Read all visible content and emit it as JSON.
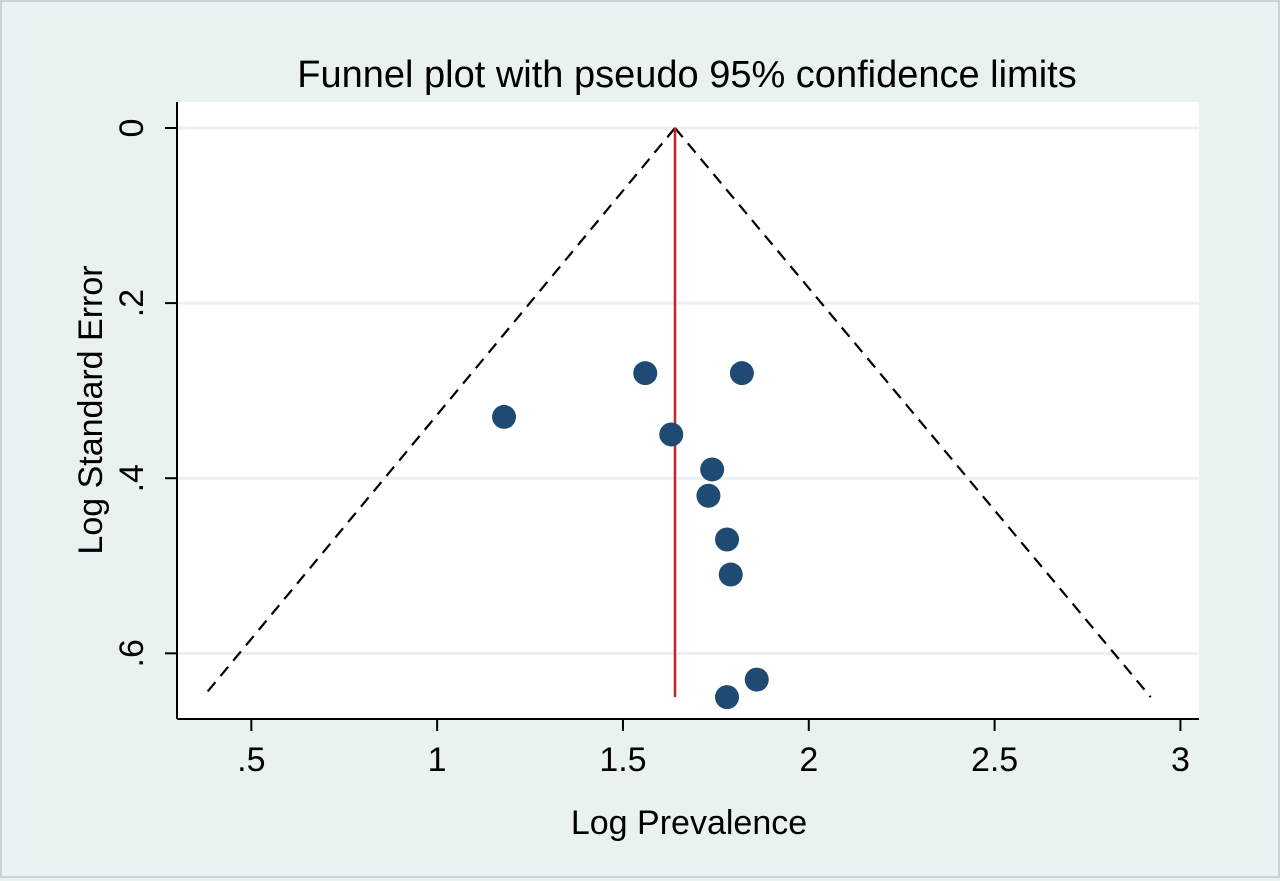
{
  "chart_data": {
    "type": "scatter",
    "title": "Funnel plot with pseudo 95% confidence limits",
    "xlabel": "Log Prevalence",
    "ylabel": "Log Standard Error",
    "xlim": [
      0.3,
      3.05
    ],
    "ylim": [
      0,
      0.675
    ],
    "y_reversed": true,
    "x_ticks": [
      {
        "value": 0.5,
        "label": ".5"
      },
      {
        "value": 1,
        "label": "1"
      },
      {
        "value": 1.5,
        "label": "1.5"
      },
      {
        "value": 2,
        "label": "2"
      },
      {
        "value": 2.5,
        "label": "2.5"
      },
      {
        "value": 3,
        "label": "3"
      }
    ],
    "y_ticks": [
      {
        "value": 0,
        "label": "0"
      },
      {
        "value": 0.2,
        "label": ".2"
      },
      {
        "value": 0.4,
        "label": ".4"
      },
      {
        "value": 0.6,
        "label": ".6"
      }
    ],
    "grid": "horizontal",
    "pooled_estimate": 1.64,
    "pooled_line_y_range": [
      0,
      0.65
    ],
    "pseudo_ci_limits": {
      "apex": [
        1.64,
        0
      ],
      "lower_left": [
        0.37,
        0.65
      ],
      "lower_right": [
        2.92,
        0.65
      ]
    },
    "points": [
      {
        "x": 1.18,
        "y": 0.33
      },
      {
        "x": 1.56,
        "y": 0.28
      },
      {
        "x": 1.82,
        "y": 0.28
      },
      {
        "x": 1.63,
        "y": 0.35
      },
      {
        "x": 1.74,
        "y": 0.39
      },
      {
        "x": 1.73,
        "y": 0.42
      },
      {
        "x": 1.78,
        "y": 0.47
      },
      {
        "x": 1.79,
        "y": 0.51
      },
      {
        "x": 1.86,
        "y": 0.63
      },
      {
        "x": 1.78,
        "y": 0.65
      }
    ],
    "colors": {
      "points": "#1f4a72",
      "pooled_line": "#cc1f2a",
      "ci_lines": "#000000",
      "grid": "#eaf1f3",
      "plot_background": "#ffffff",
      "figure_background": "#eaf1f3"
    }
  }
}
